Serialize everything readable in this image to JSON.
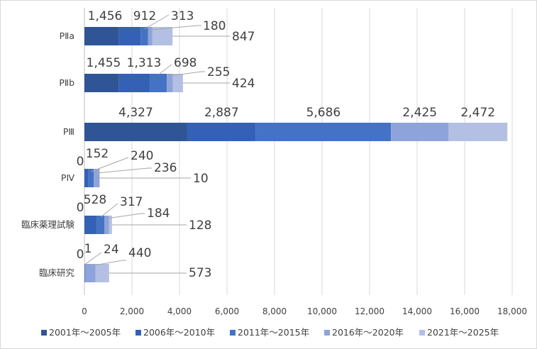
{
  "chart_data": {
    "type": "bar",
    "orientation": "horizontal",
    "stacked": true,
    "categories": [
      "PⅡa",
      "PⅡb",
      "PⅢ",
      "PⅣ",
      "臨床薬理試験",
      "臨床研究"
    ],
    "series": [
      {
        "name": "2001年～2005年",
        "color": "#2f5597",
        "values": [
          1456,
          1455,
          4327,
          0,
          0,
          0
        ]
      },
      {
        "name": "2006年～2010年",
        "color": "#3461b6",
        "values": [
          912,
          1313,
          2887,
          152,
          528,
          1
        ]
      },
      {
        "name": "2011年～2015年",
        "color": "#4472c4",
        "values": [
          313,
          698,
          5686,
          240,
          317,
          24
        ]
      },
      {
        "name": "2016年～2020年",
        "color": "#8ea3d9",
        "values": [
          180,
          255,
          2425,
          236,
          184,
          440
        ]
      },
      {
        "name": "2021年～2025年",
        "color": "#b4c0e3",
        "values": [
          847,
          424,
          2472,
          10,
          128,
          573
        ]
      }
    ],
    "data_labels": [
      [
        "1,456",
        "912",
        "313",
        "180",
        "847"
      ],
      [
        "1,455",
        "1,313",
        "698",
        "255",
        "424"
      ],
      [
        "4,327",
        "2,887",
        "5,686",
        "2,425",
        "2,472"
      ],
      [
        "0",
        "152",
        "240",
        "236",
        "10"
      ],
      [
        "0",
        "528",
        "317",
        "184",
        "128"
      ],
      [
        "0",
        "1",
        "24",
        "440",
        "573"
      ]
    ],
    "xlim": [
      0,
      18000
    ],
    "x_ticks": [
      0,
      2000,
      4000,
      6000,
      8000,
      10000,
      12000,
      14000,
      16000,
      18000
    ],
    "x_tick_labels": [
      "0",
      "2,000",
      "4,000",
      "6,000",
      "8,000",
      "10,000",
      "12,000",
      "14,000",
      "16,000",
      "18,000"
    ],
    "grid": true,
    "legend_position": "bottom"
  }
}
